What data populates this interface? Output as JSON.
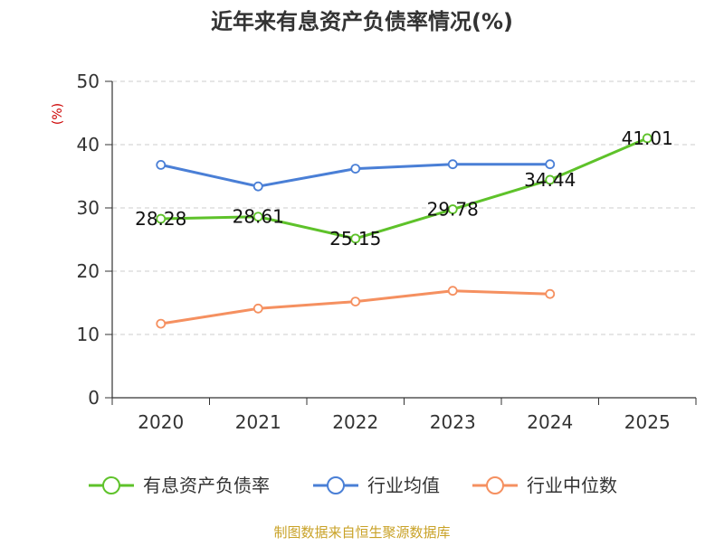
{
  "chart_data": {
    "type": "line",
    "title": "近年来有息资产负债率情况(%)",
    "ylabel": "(%)",
    "xlabel": "",
    "categories": [
      "2020",
      "2021",
      "2022",
      "2023",
      "2024",
      "2025"
    ],
    "ylim": [
      0,
      50
    ],
    "yticks": [
      0,
      10,
      20,
      30,
      40,
      50
    ],
    "grid": true,
    "legend_position": "bottom",
    "series": [
      {
        "name": "有息资产负债率",
        "color": "#5ec22a",
        "values": [
          28.28,
          28.61,
          25.15,
          29.78,
          34.44,
          41.01
        ],
        "labels": [
          "28.28",
          "28.61",
          "25.15",
          "29.78",
          "34.44",
          "41.01"
        ]
      },
      {
        "name": "行业均值",
        "color": "#4a7fd6",
        "values": [
          36.8,
          33.4,
          36.2,
          36.9,
          36.9,
          null
        ]
      },
      {
        "name": "行业中位数",
        "color": "#f59060",
        "values": [
          11.7,
          14.1,
          15.2,
          16.9,
          16.4,
          null
        ]
      }
    ],
    "source": "制图数据来自恒生聚源数据库"
  }
}
